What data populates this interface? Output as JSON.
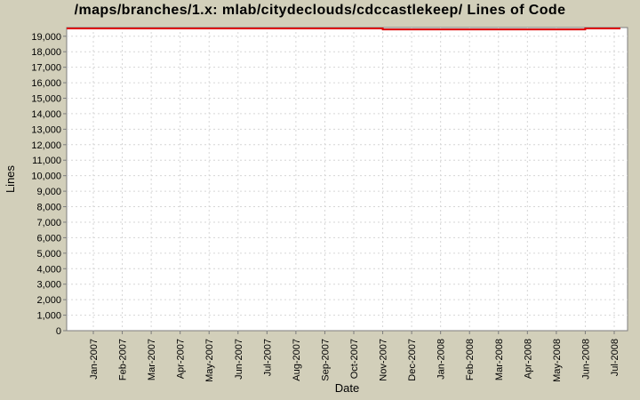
{
  "colors": {
    "background": "#d2cfba",
    "plot_background": "#ffffff",
    "plot_border": "#7d7d7d",
    "gridline": "#d6d6d6",
    "tick_mark": "#7d7d7d",
    "series_red": "#dd0000",
    "text": "#000000"
  },
  "chart_data": {
    "type": "line",
    "title": "/maps/branches/1.x: mlab/citydeclouds/cdccastlekeep/ Lines of Code",
    "xlabel": "Date",
    "ylabel": "Lines",
    "categories": [
      "Jan-2007",
      "Feb-2007",
      "Mar-2007",
      "Apr-2007",
      "May-2007",
      "Jun-2007",
      "Jul-2007",
      "Aug-2007",
      "Sep-2007",
      "Oct-2007",
      "Nov-2007",
      "Dec-2007",
      "Jan-2008",
      "Feb-2008",
      "Mar-2008",
      "Apr-2008",
      "May-2008",
      "Jun-2008",
      "Jul-2008"
    ],
    "series": [
      {
        "name": "Lines of Code",
        "color": "#dd0000",
        "line_style": "step",
        "values": [
          19500,
          19500,
          19500,
          19500,
          19500,
          19500,
          19500,
          19500,
          19500,
          19500,
          19440,
          19440,
          19440,
          19440,
          19440,
          19440,
          19440,
          19500,
          19500
        ]
      }
    ],
    "ylim": [
      0,
      19560
    ],
    "y_ticks": [
      0,
      1000,
      2000,
      3000,
      4000,
      5000,
      6000,
      7000,
      8000,
      9000,
      10000,
      11000,
      12000,
      13000,
      14000,
      15000,
      16000,
      17000,
      18000,
      19000
    ],
    "y_tick_labels": [
      "0",
      "1,000",
      "2,000",
      "3,000",
      "4,000",
      "5,000",
      "6,000",
      "7,000",
      "8,000",
      "9,000",
      "10,000",
      "11,000",
      "12,000",
      "13,000",
      "14,000",
      "15,000",
      "16,000",
      "17,000",
      "18,000",
      "19,000"
    ],
    "grid": true,
    "legend": "none",
    "x_tick_label_rotation_deg": -90,
    "note": "Series runs along very top of plot, slightly above 19,000; small dip between Nov-2007 and Jun-2008"
  }
}
